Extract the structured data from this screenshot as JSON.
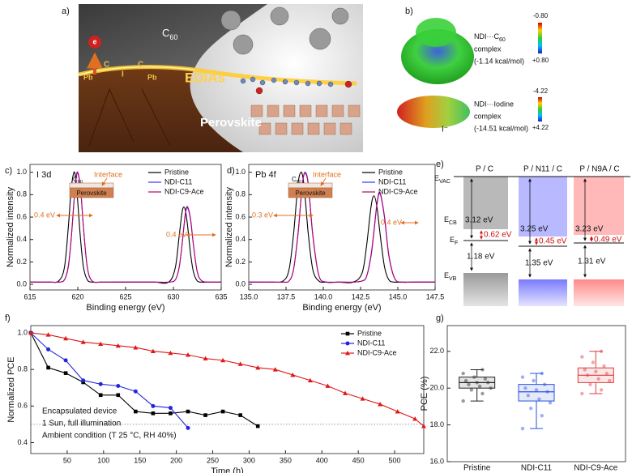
{
  "panel_labels": [
    "a)",
    "b)",
    "c)",
    "d)",
    "e)",
    "f)",
    "g)"
  ],
  "illustration": {
    "electron": "e",
    "c60": {
      "main": "C",
      "sub": "60"
    },
    "atoms": [
      "Pb",
      "C",
      "I",
      "C",
      "Pb"
    ],
    "interface": "EDIAs",
    "perovskite": "Perovskite"
  },
  "esp": [
    {
      "lines": [
        {
          "main": "NDI···C",
          "sub": "60"
        },
        "complex",
        "(-1.14 kcal/mol)"
      ],
      "scale": [
        "-0.80",
        "+0.80"
      ]
    },
    {
      "lines": [
        "NDI···Iodine",
        "complex",
        "(-14.51 kcal/mol)"
      ],
      "scale": [
        "-4.22",
        "+4.22"
      ],
      "ion": "I⁻"
    }
  ],
  "energy_levels": {
    "columns": [
      "P / C",
      "P / N11 / C",
      "P / N9A / C"
    ],
    "levels": [
      {
        "main": "E",
        "sub": "VAC"
      },
      {
        "main": "E",
        "sub": "CB"
      },
      {
        "main": "E",
        "sub": "F"
      },
      {
        "main": "E",
        "sub": "VB"
      }
    ],
    "upper": [
      "3.12 eV",
      "3.25 eV",
      "3.23 eV"
    ],
    "middle": [
      "0.62 eV",
      "0.45 eV",
      "0.49 eV"
    ],
    "lower": [
      "1.18 eV",
      "1.35 eV",
      "1.31 eV"
    ]
  },
  "chart_data": [
    {
      "type": "line",
      "title": "I 3d",
      "xlabel": "Binding energy (eV)",
      "ylabel": "Normalized intensity",
      "xlim": [
        615,
        635
      ],
      "xticks": [
        615,
        620,
        625,
        630,
        635
      ],
      "ylim": [
        -0.05,
        1.07
      ],
      "yticks": [
        {
          "value": 0,
          "label": "0.0"
        },
        {
          "value": 0.2,
          "label": "0.2"
        },
        {
          "value": 0.4,
          "label": "0.4"
        },
        {
          "value": 0.6,
          "label": "0.6"
        },
        {
          "value": 0.8,
          "label": "0.8"
        },
        {
          "value": 1.0,
          "label": "1.0"
        }
      ],
      "smooth": true,
      "legend": "upper right",
      "inset": {
        "label": "Interface",
        "top": {
          "main": "C",
          "sub": "60"
        },
        "bottom": "Perovskite"
      },
      "annotations": [
        "0.4 eV",
        "0.4 eV"
      ],
      "x": [
        615,
        617,
        618,
        618.6,
        619.0,
        619.3,
        619.6,
        619.8,
        620.0,
        620.3,
        620.6,
        621.0,
        621.5,
        622.5,
        624,
        626,
        628,
        629.5,
        630.2,
        630.6,
        630.9,
        631.1,
        631.3,
        631.5,
        631.8,
        632.1,
        632.5,
        633,
        634,
        635
      ],
      "series": [
        {
          "name": "Pristine",
          "color": "#000000",
          "values": [
            0.02,
            0.02,
            0.03,
            0.15,
            0.5,
            0.84,
            1.0,
            0.93,
            0.73,
            0.39,
            0.15,
            0.04,
            0.02,
            0.02,
            0.02,
            0.02,
            0.02,
            0.02,
            0.15,
            0.43,
            0.64,
            0.69,
            0.64,
            0.51,
            0.27,
            0.11,
            0.03,
            0.02,
            0.02,
            0.02
          ]
        },
        {
          "name": "NDI-C11",
          "color": "#3434ff",
          "values": [
            0.02,
            0.02,
            0.02,
            0.04,
            0.15,
            0.39,
            0.73,
            0.93,
            0.99,
            0.84,
            0.5,
            0.15,
            0.03,
            0.02,
            0.02,
            0.02,
            0.02,
            0.02,
            0.04,
            0.15,
            0.35,
            0.51,
            0.65,
            0.68,
            0.57,
            0.35,
            0.11,
            0.03,
            0.02,
            0.02
          ]
        },
        {
          "name": "NDI-C9-Ace",
          "color": "#b8006e",
          "values": [
            0.02,
            0.02,
            0.02,
            0.04,
            0.16,
            0.4,
            0.74,
            0.94,
            1.0,
            0.85,
            0.5,
            0.15,
            0.03,
            0.02,
            0.02,
            0.02,
            0.02,
            0.02,
            0.04,
            0.15,
            0.35,
            0.52,
            0.66,
            0.69,
            0.58,
            0.35,
            0.11,
            0.03,
            0.02,
            0.02
          ]
        }
      ]
    },
    {
      "type": "line",
      "title": "Pb 4f",
      "xlabel": "Binding energy (eV)",
      "ylabel": "Normalized intensity",
      "xlim": [
        135,
        147.5
      ],
      "xticks": [
        {
          "value": 135,
          "label": "135.0"
        },
        {
          "value": 137.5,
          "label": "137.5"
        },
        {
          "value": 140,
          "label": "140.0"
        },
        {
          "value": 142.5,
          "label": "142.5"
        },
        {
          "value": 145,
          "label": "145.0"
        },
        {
          "value": 147.5,
          "label": "147.5"
        }
      ],
      "ylim": [
        -0.05,
        1.07
      ],
      "yticks": [
        {
          "value": 0,
          "label": "0.0"
        },
        {
          "value": 0.2,
          "label": "0.2"
        },
        {
          "value": 0.4,
          "label": "0.4"
        },
        {
          "value": 0.6,
          "label": "0.6"
        },
        {
          "value": 0.8,
          "label": "0.8"
        },
        {
          "value": 1.0,
          "label": "1.0"
        }
      ],
      "smooth": true,
      "legend": "upper right",
      "inset": {
        "label": "Interface",
        "top": {
          "main": "C",
          "sub": "60"
        },
        "bottom": "Perovskite"
      },
      "annotations": [
        "0.3 eV",
        "0.4 eV"
      ],
      "x": [
        135,
        136.5,
        137.3,
        137.7,
        138.0,
        138.3,
        138.5,
        138.65,
        138.8,
        139.0,
        139.3,
        139.7,
        140.2,
        141,
        142,
        142.6,
        142.9,
        143.2,
        143.4,
        143.6,
        143.8,
        144.1,
        144.4,
        144.8,
        145.3,
        146,
        147.5
      ],
      "series": [
        {
          "name": "Pristine",
          "color": "#000000",
          "values": [
            0.02,
            0.02,
            0.03,
            0.13,
            0.44,
            0.89,
            1.0,
            0.94,
            0.75,
            0.44,
            0.13,
            0.03,
            0.02,
            0.02,
            0.02,
            0.1,
            0.34,
            0.69,
            0.79,
            0.69,
            0.46,
            0.16,
            0.04,
            0.02,
            0.02,
            0.02,
            0.02
          ]
        },
        {
          "name": "NDI-C11",
          "color": "#3434ff",
          "values": [
            0.02,
            0.02,
            0.02,
            0.03,
            0.13,
            0.44,
            0.75,
            0.94,
            1.0,
            0.89,
            0.44,
            0.08,
            0.02,
            0.02,
            0.02,
            0.03,
            0.07,
            0.25,
            0.47,
            0.71,
            0.81,
            0.6,
            0.25,
            0.05,
            0.02,
            0.02,
            0.02
          ]
        },
        {
          "name": "NDI-C9-Ace",
          "color": "#b8006e",
          "values": [
            0.02,
            0.02,
            0.02,
            0.03,
            0.13,
            0.45,
            0.76,
            0.95,
            0.99,
            0.88,
            0.43,
            0.08,
            0.02,
            0.02,
            0.02,
            0.03,
            0.07,
            0.26,
            0.48,
            0.72,
            0.82,
            0.61,
            0.26,
            0.05,
            0.02,
            0.02,
            0.02
          ]
        }
      ]
    },
    {
      "type": "line",
      "xlabel": "Time (h)",
      "ylabel": "Normalized PCE",
      "xlim": [
        0,
        540
      ],
      "xticks": [
        50,
        100,
        150,
        200,
        250,
        300,
        350,
        400,
        450,
        500
      ],
      "ylim": [
        0.34,
        1.04
      ],
      "yticks": [
        {
          "value": 0.4,
          "label": "0.4"
        },
        {
          "value": 0.6,
          "label": "0.6"
        },
        {
          "value": 0.8,
          "label": "0.8"
        },
        {
          "value": 1.0,
          "label": "1.0"
        }
      ],
      "reference_line": 0.5,
      "legend": "upper right",
      "annotations": [
        "Encapsulated device",
        "1 Sun, full illumination",
        "Ambient condition (T 25 °C, RH 40%)"
      ],
      "series": [
        {
          "name": "Pristine",
          "color": "#000000",
          "marker": "square",
          "x": [
            0,
            24,
            48,
            72,
            96,
            120,
            144,
            168,
            192,
            216,
            240,
            264,
            288,
            312
          ],
          "values": [
            1.0,
            0.81,
            0.78,
            0.73,
            0.66,
            0.66,
            0.57,
            0.56,
            0.56,
            0.57,
            0.55,
            0.57,
            0.55,
            0.49
          ]
        },
        {
          "name": "NDI-C11",
          "color": "#2424e0",
          "marker": "circle",
          "x": [
            0,
            24,
            48,
            72,
            96,
            120,
            144,
            168,
            192,
            216
          ],
          "values": [
            1.0,
            0.91,
            0.85,
            0.74,
            0.72,
            0.71,
            0.68,
            0.6,
            0.59,
            0.48
          ]
        },
        {
          "name": "NDI-C9-Ace",
          "color": "#e01818",
          "marker": "triangle",
          "x": [
            0,
            24,
            48,
            72,
            96,
            120,
            144,
            168,
            192,
            216,
            240,
            264,
            288,
            312,
            336,
            360,
            384,
            408,
            432,
            456,
            480,
            504,
            528,
            540
          ],
          "values": [
            1.0,
            0.99,
            0.97,
            0.95,
            0.94,
            0.93,
            0.92,
            0.9,
            0.89,
            0.88,
            0.86,
            0.85,
            0.83,
            0.81,
            0.8,
            0.77,
            0.74,
            0.71,
            0.67,
            0.64,
            0.61,
            0.57,
            0.53,
            0.49
          ]
        }
      ]
    },
    {
      "type": "box",
      "ylabel": "PCE (%)",
      "ylim": [
        16,
        23.4
      ],
      "yticks": [
        {
          "value": 16,
          "label": "16.0"
        },
        {
          "value": 18,
          "label": "18.0"
        },
        {
          "value": 20,
          "label": "20.0"
        },
        {
          "value": 22,
          "label": "22.0"
        }
      ],
      "categories": [
        "Pristine",
        "NDI-C11",
        "NDI-C9-Ace"
      ],
      "boxes": [
        {
          "color": "#222222",
          "min": 19.3,
          "q1": 20.0,
          "median": 20.3,
          "q3": 20.6,
          "max": 21.0,
          "points": [
            19.3,
            19.7,
            19.9,
            20.0,
            20.1,
            20.2,
            20.3,
            20.3,
            20.4,
            20.5,
            20.6,
            20.8,
            21.0
          ]
        },
        {
          "color": "#2a50e0",
          "min": 17.8,
          "q1": 19.3,
          "median": 19.8,
          "q3": 20.2,
          "max": 20.8,
          "points": [
            17.8,
            18.5,
            18.9,
            19.2,
            19.4,
            19.6,
            19.8,
            19.9,
            20.0,
            20.2,
            20.4,
            20.6,
            20.8
          ]
        },
        {
          "color": "#e03a3a",
          "min": 19.7,
          "q1": 20.3,
          "median": 20.7,
          "q3": 21.1,
          "max": 22.0,
          "points": [
            19.7,
            19.9,
            20.2,
            20.4,
            20.5,
            20.7,
            20.8,
            20.9,
            21.0,
            21.2,
            21.4,
            21.7,
            22.0
          ]
        }
      ]
    }
  ]
}
